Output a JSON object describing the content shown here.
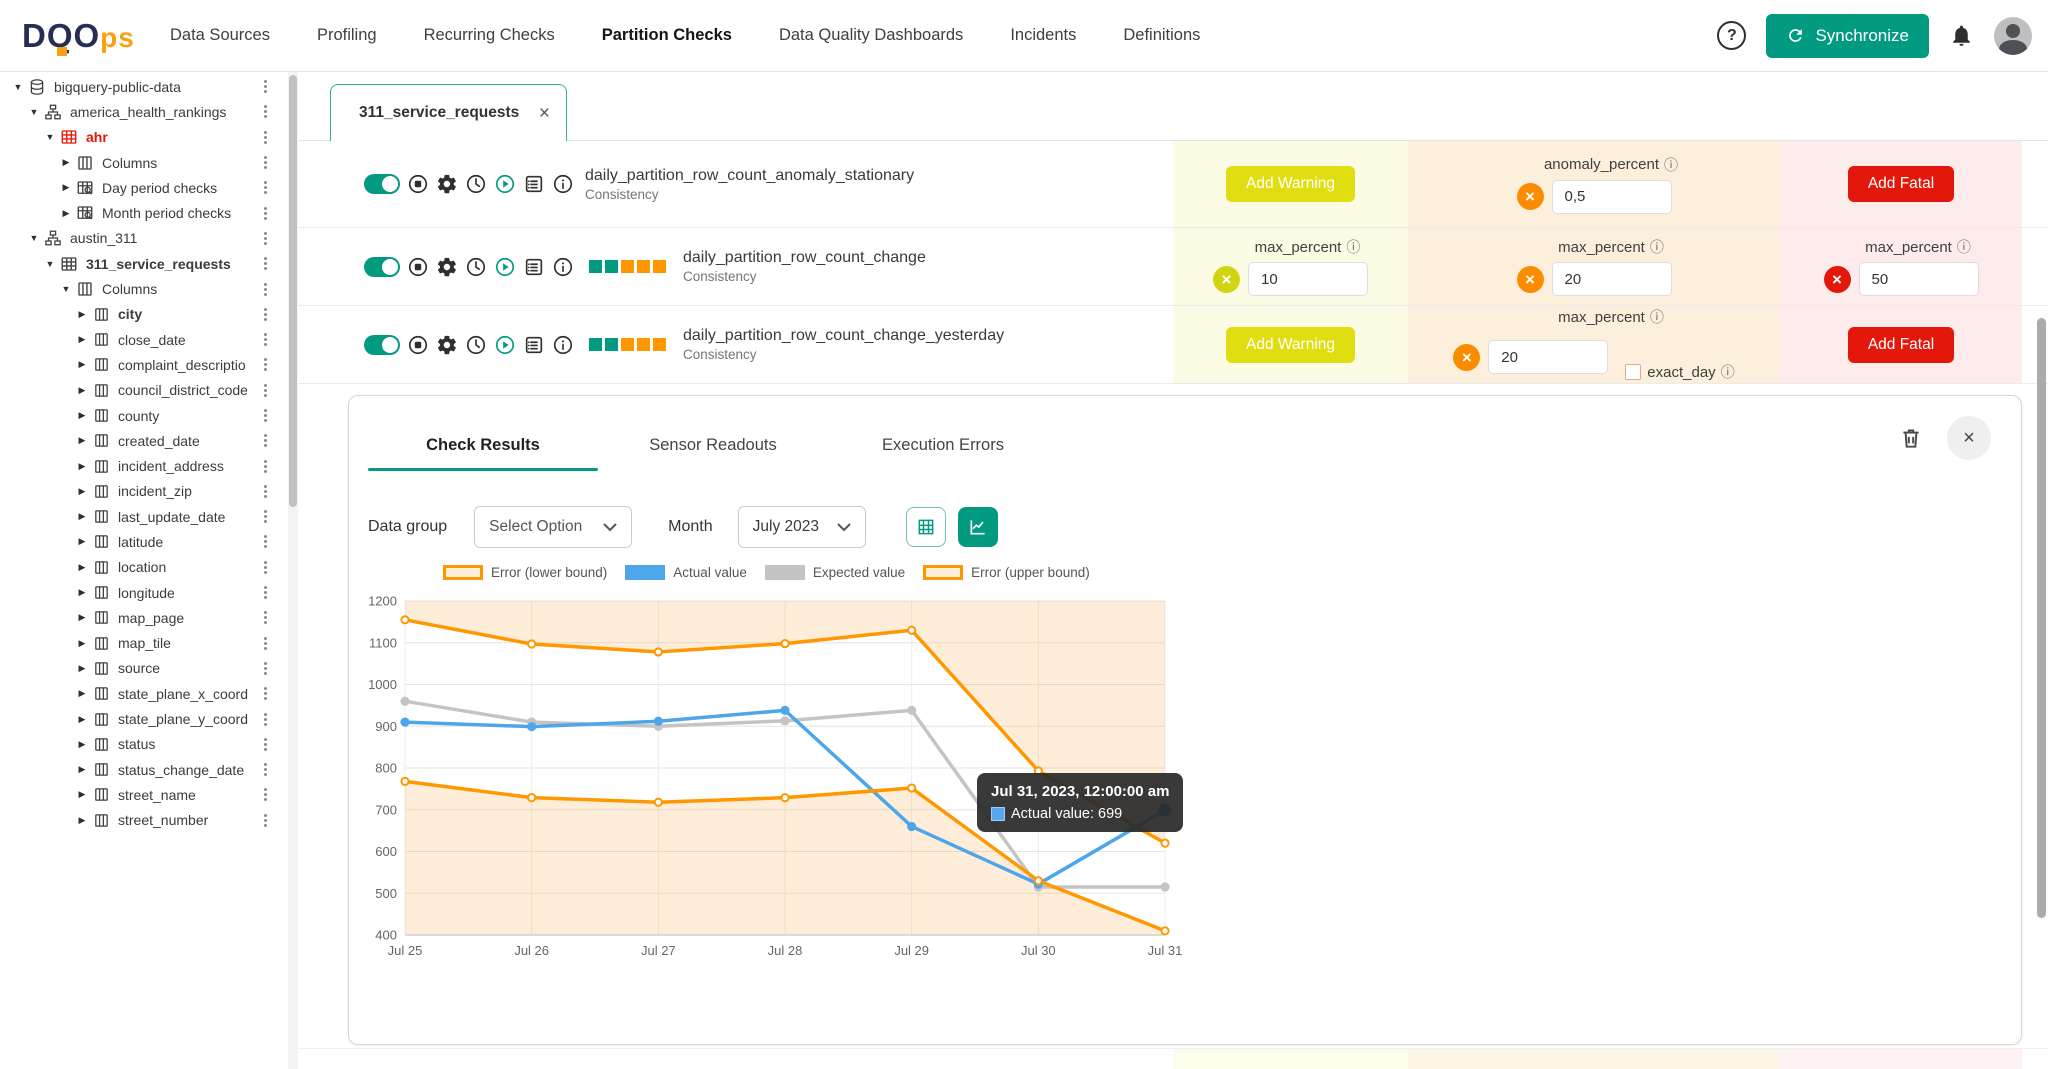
{
  "navbar": {
    "logo_part1": "DQO",
    "logo_part2": "ps",
    "items": [
      {
        "label": "Data Sources",
        "active": false
      },
      {
        "label": "Profiling",
        "active": false
      },
      {
        "label": "Recurring Checks",
        "active": false
      },
      {
        "label": "Partition Checks",
        "active": true
      },
      {
        "label": "Data Quality Dashboards",
        "active": false
      },
      {
        "label": "Incidents",
        "active": false
      },
      {
        "label": "Definitions",
        "active": false
      }
    ],
    "help_glyph": "?",
    "synchronize_label": "Synchronize"
  },
  "sidebar": {
    "items": [
      {
        "label": "bigquery-public-data",
        "depth": 0,
        "arrow": "down",
        "icon": "database",
        "style": ""
      },
      {
        "label": "america_health_rankings",
        "depth": 1,
        "arrow": "down",
        "icon": "schema",
        "style": ""
      },
      {
        "label": "ahr",
        "depth": 2,
        "arrow": "down",
        "icon": "table",
        "style": "red"
      },
      {
        "label": "Columns",
        "depth": 3,
        "arrow": "right",
        "icon": "columns",
        "style": ""
      },
      {
        "label": "Day period checks",
        "depth": 3,
        "arrow": "right",
        "icon": "table-check",
        "style": ""
      },
      {
        "label": "Month period checks",
        "depth": 3,
        "arrow": "right",
        "icon": "table-check",
        "style": ""
      },
      {
        "label": "austin_311",
        "depth": 1,
        "arrow": "down",
        "icon": "schema",
        "style": ""
      },
      {
        "label": "311_service_requests",
        "depth": 2,
        "arrow": "down",
        "icon": "table",
        "style": "b"
      },
      {
        "label": "Columns",
        "depth": 3,
        "arrow": "down",
        "icon": "columns",
        "style": ""
      },
      {
        "label": "city",
        "depth": 4,
        "arrow": "right",
        "icon": "column",
        "style": "b"
      },
      {
        "label": "close_date",
        "depth": 4,
        "arrow": "right",
        "icon": "column",
        "style": ""
      },
      {
        "label": "complaint_descriptio",
        "depth": 4,
        "arrow": "right",
        "icon": "column",
        "style": ""
      },
      {
        "label": "council_district_code",
        "depth": 4,
        "arrow": "right",
        "icon": "column",
        "style": ""
      },
      {
        "label": "county",
        "depth": 4,
        "arrow": "right",
        "icon": "column",
        "style": ""
      },
      {
        "label": "created_date",
        "depth": 4,
        "arrow": "right",
        "icon": "column",
        "style": ""
      },
      {
        "label": "incident_address",
        "depth": 4,
        "arrow": "right",
        "icon": "column",
        "style": ""
      },
      {
        "label": "incident_zip",
        "depth": 4,
        "arrow": "right",
        "icon": "column",
        "style": ""
      },
      {
        "label": "last_update_date",
        "depth": 4,
        "arrow": "right",
        "icon": "column",
        "style": ""
      },
      {
        "label": "latitude",
        "depth": 4,
        "arrow": "right",
        "icon": "column",
        "style": ""
      },
      {
        "label": "location",
        "depth": 4,
        "arrow": "right",
        "icon": "column",
        "style": ""
      },
      {
        "label": "longitude",
        "depth": 4,
        "arrow": "right",
        "icon": "column",
        "style": ""
      },
      {
        "label": "map_page",
        "depth": 4,
        "arrow": "right",
        "icon": "column",
        "style": ""
      },
      {
        "label": "map_tile",
        "depth": 4,
        "arrow": "right",
        "icon": "column",
        "style": ""
      },
      {
        "label": "source",
        "depth": 4,
        "arrow": "right",
        "icon": "column",
        "style": ""
      },
      {
        "label": "state_plane_x_coord",
        "depth": 4,
        "arrow": "right",
        "icon": "column",
        "style": ""
      },
      {
        "label": "state_plane_y_coord",
        "depth": 4,
        "arrow": "right",
        "icon": "column",
        "style": ""
      },
      {
        "label": "status",
        "depth": 4,
        "arrow": "right",
        "icon": "column",
        "style": ""
      },
      {
        "label": "status_change_date",
        "depth": 4,
        "arrow": "right",
        "icon": "column",
        "style": ""
      },
      {
        "label": "street_name",
        "depth": 4,
        "arrow": "right",
        "icon": "column",
        "style": ""
      },
      {
        "label": "street_number",
        "depth": 4,
        "arrow": "right",
        "icon": "column",
        "style": ""
      }
    ]
  },
  "tab": {
    "label": "311_service_requests",
    "close_glyph": "×"
  },
  "checks": {
    "rows": [
      {
        "name": "daily_partition_row_count_anomaly_stationary",
        "category": "Consistency",
        "squares": [],
        "warning": {
          "type": "button",
          "label": "Add Warning"
        },
        "error": {
          "type": "field",
          "param": "anomaly_percent",
          "value": "0,5"
        },
        "fatal": {
          "type": "button",
          "label": "Add Fatal"
        }
      },
      {
        "name": "daily_partition_row_count_change",
        "category": "Consistency",
        "squares": [
          "green",
          "green",
          "orange",
          "orange",
          "orange"
        ],
        "warning": {
          "type": "field",
          "param": "max_percent",
          "value": "10"
        },
        "error": {
          "type": "field",
          "param": "max_percent",
          "value": "20"
        },
        "fatal": {
          "type": "field",
          "param": "max_percent",
          "value": "50"
        }
      },
      {
        "name": "daily_partition_row_count_change_yesterday",
        "category": "Consistency",
        "squares": [
          "green",
          "green",
          "orange",
          "orange",
          "orange"
        ],
        "warning": {
          "type": "button",
          "label": "Add Warning"
        },
        "error": {
          "type": "field",
          "param": "max_percent",
          "value": "20",
          "checkbox_label": "exact_day"
        },
        "fatal": {
          "type": "button",
          "label": "Add Fatal"
        }
      }
    ]
  },
  "results_panel": {
    "tabs": [
      {
        "label": "Check Results",
        "active": true
      },
      {
        "label": "Sensor Readouts",
        "active": false
      },
      {
        "label": "Execution Errors",
        "active": false
      }
    ],
    "filters": {
      "data_group_label": "Data group",
      "data_group_value": "Select Option",
      "month_label": "Month",
      "month_value": "July 2023"
    }
  },
  "chart_data": {
    "type": "line",
    "x": [
      "Jul 25",
      "Jul 26",
      "Jul 27",
      "Jul 28",
      "Jul 29",
      "Jul 30",
      "Jul 31"
    ],
    "ylim": [
      400,
      1200
    ],
    "ytick_step": 100,
    "grid": true,
    "legend_position": "top",
    "band_region": "outside-bounds",
    "band_fill": "rgba(251,140,0,0.15)",
    "series": [
      {
        "name": "Error (lower bound)",
        "color": "#ff9800",
        "style": "bound",
        "values": [
          768,
          729,
          718,
          729,
          752,
          530,
          410
        ]
      },
      {
        "name": "Actual value",
        "color": "#4da6ea",
        "style": "solid",
        "values": [
          910,
          899,
          912,
          938,
          660,
          522,
          699
        ]
      },
      {
        "name": "Expected value",
        "color": "#c4c4c4",
        "style": "solid",
        "values": [
          960,
          910,
          900,
          913,
          938,
          515,
          515
        ]
      },
      {
        "name": "Error (upper bound)",
        "color": "#ff9800",
        "style": "bound",
        "values": [
          1155,
          1097,
          1078,
          1098,
          1130,
          793,
          620
        ]
      }
    ]
  },
  "tooltip": {
    "title": "Jul 31, 2023, 12:00:00 am",
    "series": "Actual value",
    "value": "699",
    "text": "Actual value: 699"
  },
  "colors": {
    "teal": "#029a80",
    "warning_btn": "#e0de10",
    "warning_circle": "#d2d411",
    "error_circle": "#fb8c00",
    "fatal_red": "#e3170a",
    "square_green": "#029a80",
    "square_orange": "#ff9800",
    "highlight_dot": "#1e88e5"
  }
}
